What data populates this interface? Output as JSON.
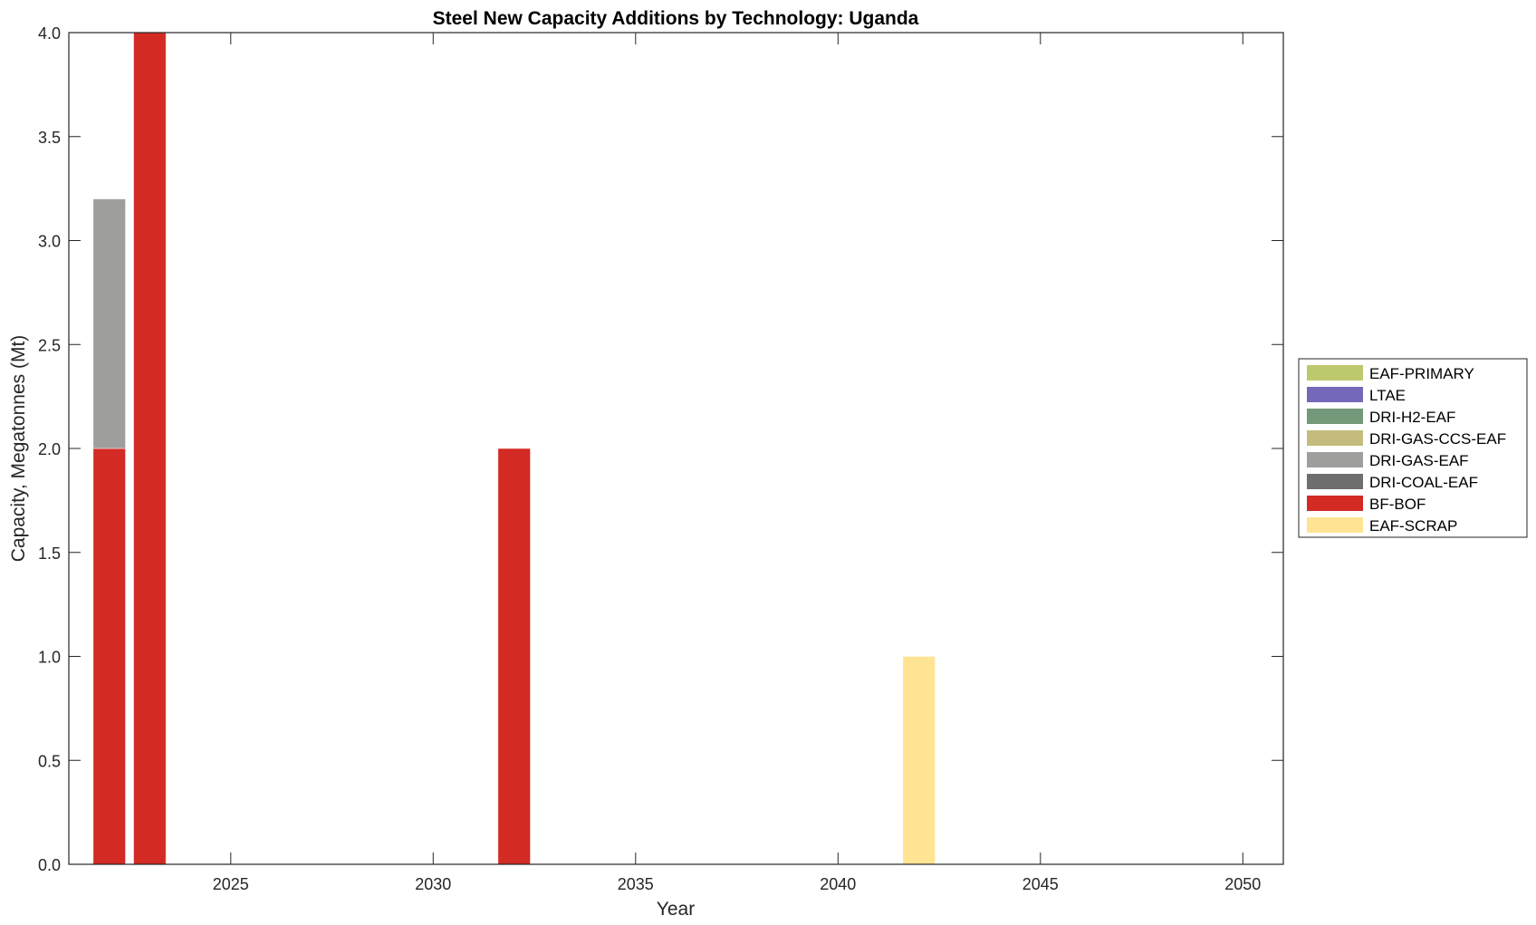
{
  "chart_data": {
    "type": "bar",
    "stacked": true,
    "title": "Steel New Capacity Additions by Technology: Uganda",
    "xlabel": "Year",
    "ylabel": "Capacity, Megatonnes (Mt)",
    "xlim": [
      2021,
      2051
    ],
    "ylim": [
      0,
      4
    ],
    "xticks": [
      2025,
      2030,
      2035,
      2040,
      2045,
      2050
    ],
    "yticks": [
      "0.0",
      "0.5",
      "1.0",
      "1.5",
      "2.0",
      "2.5",
      "3.0",
      "3.5",
      "4.0"
    ],
    "bar_width_years": 0.8,
    "grid": false,
    "legend_position": "right-outside",
    "x": [
      2022,
      2023,
      2032,
      2042
    ],
    "series": [
      {
        "name": "EAF-SCRAP",
        "color": "#FFE494",
        "values": [
          0,
          0,
          0,
          1
        ]
      },
      {
        "name": "BF-BOF",
        "color": "#D32A24",
        "values": [
          2,
          4,
          2,
          0
        ]
      },
      {
        "name": "DRI-COAL-EAF",
        "color": "#6E6E6E",
        "values": [
          0,
          0,
          0,
          0
        ]
      },
      {
        "name": "DRI-GAS-EAF",
        "color": "#9E9E9C",
        "values": [
          1.2,
          0,
          0,
          0
        ]
      },
      {
        "name": "DRI-GAS-CCS-EAF",
        "color": "#C4BC7C",
        "values": [
          0,
          0,
          0,
          0
        ]
      },
      {
        "name": "DRI-H2-EAF",
        "color": "#74997A",
        "values": [
          0,
          0,
          0,
          0
        ]
      },
      {
        "name": "LTAE",
        "color": "#7469B8",
        "values": [
          0,
          0,
          0,
          0
        ]
      },
      {
        "name": "EAF-PRIMARY",
        "color": "#BEC86C",
        "values": [
          0,
          0,
          0,
          0
        ]
      }
    ],
    "legend_order": [
      "EAF-PRIMARY",
      "LTAE",
      "DRI-H2-EAF",
      "DRI-GAS-CCS-EAF",
      "DRI-GAS-EAF",
      "DRI-COAL-EAF",
      "BF-BOF",
      "EAF-SCRAP"
    ]
  }
}
